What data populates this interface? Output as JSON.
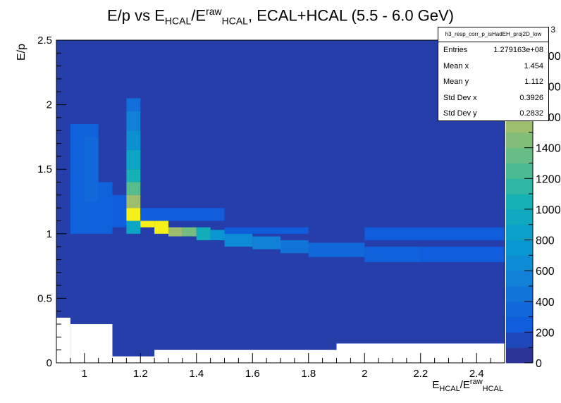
{
  "title": {
    "pre": "E/p vs E",
    "sub1": "HCAL",
    "mid": "/E",
    "sup2": "raw",
    "sub2": "HCAL",
    "post": ", ECAL+HCAL (5.5 - 6.0 GeV)"
  },
  "xlabel": {
    "pre": "E",
    "sub1": "HCAL",
    "mid": "/E",
    "sup2": "raw",
    "sub2": "HCAL"
  },
  "ylabel": "E/p",
  "stats": {
    "name": "h3_resp_corr_p_isHadEH_proj2D_low",
    "rows": [
      {
        "label": "Entries",
        "value": "1.279163e+08"
      },
      {
        "label": "Mean x",
        "value": "1.454"
      },
      {
        "label": "Mean y",
        "value": "1.112"
      },
      {
        "label": "Std Dev x",
        "value": "0.3926"
      },
      {
        "label": "Std Dev y",
        "value": "0.2832"
      }
    ]
  },
  "chart_data": {
    "type": "heatmap",
    "xlim": [
      0.9,
      2.5
    ],
    "ylim": [
      0,
      2.5
    ],
    "x_ticks": [
      "1",
      "1.2",
      "1.4",
      "1.6",
      "1.8",
      "2",
      "2.2",
      "2.4"
    ],
    "x_tick_values": [
      1.0,
      1.2,
      1.4,
      1.6,
      1.8,
      2.0,
      2.2,
      2.4
    ],
    "y_ticks": [
      "0",
      "0.5",
      "1",
      "1.5",
      "2",
      "2.5"
    ],
    "y_tick_values": [
      0,
      0.5,
      1.0,
      1.5,
      2.0,
      2.5
    ],
    "z_ticks": [
      "0",
      "200",
      "400",
      "600",
      "800",
      "1000",
      "1200",
      "1400",
      "1600"
    ],
    "z_tick_values": [
      0,
      200,
      400,
      600,
      800,
      1000,
      1200,
      1400,
      1600
    ],
    "z_multiplier_label": "3",
    "zlim": [
      0,
      2100
    ],
    "background_value": 100,
    "empty_regions": [
      {
        "x": [
          0.9,
          0.95
        ],
        "y": [
          0,
          0.35
        ]
      },
      {
        "x": [
          0.95,
          1.1
        ],
        "y": [
          0,
          0.3
        ]
      },
      {
        "x": [
          1.1,
          1.25
        ],
        "y": [
          0,
          0.05
        ]
      },
      {
        "x": [
          1.25,
          1.9
        ],
        "y": [
          0,
          0.1
        ]
      },
      {
        "x": [
          1.9,
          2.5
        ],
        "y": [
          0,
          0.15
        ]
      }
    ],
    "cells": [
      {
        "x": [
          0.95,
          1.05
        ],
        "y": [
          1.0,
          1.85
        ],
        "z": 300
      },
      {
        "x": [
          1.0,
          1.05
        ],
        "y": [
          1.25,
          1.75
        ],
        "z": 350
      },
      {
        "x": [
          1.05,
          1.1
        ],
        "y": [
          1.0,
          1.4
        ],
        "z": 300
      },
      {
        "x": [
          1.1,
          1.15
        ],
        "y": [
          1.05,
          1.3
        ],
        "z": 250
      },
      {
        "x": [
          1.15,
          1.2
        ],
        "y": [
          1.95,
          2.05
        ],
        "z": 400
      },
      {
        "x": [
          1.15,
          1.2
        ],
        "y": [
          1.8,
          1.95
        ],
        "z": 550
      },
      {
        "x": [
          1.15,
          1.2
        ],
        "y": [
          1.65,
          1.8
        ],
        "z": 700
      },
      {
        "x": [
          1.15,
          1.2
        ],
        "y": [
          1.5,
          1.65
        ],
        "z": 900
      },
      {
        "x": [
          1.15,
          1.2
        ],
        "y": [
          1.4,
          1.5
        ],
        "z": 1050
      },
      {
        "x": [
          1.15,
          1.2
        ],
        "y": [
          1.3,
          1.4
        ],
        "z": 1300
      },
      {
        "x": [
          1.15,
          1.2
        ],
        "y": [
          1.2,
          1.3
        ],
        "z": 1550
      },
      {
        "x": [
          1.15,
          1.2
        ],
        "y": [
          1.1,
          1.2
        ],
        "z": 2050
      },
      {
        "x": [
          1.15,
          1.2
        ],
        "y": [
          1.0,
          1.1
        ],
        "z": 900
      },
      {
        "x": [
          1.2,
          1.25
        ],
        "y": [
          1.05,
          1.15
        ],
        "z": 2050
      },
      {
        "x": [
          1.25,
          1.3
        ],
        "y": [
          1.0,
          1.1
        ],
        "z": 2050
      },
      {
        "x": [
          1.3,
          1.35
        ],
        "y": [
          0.98,
          1.05
        ],
        "z": 1550
      },
      {
        "x": [
          1.35,
          1.4
        ],
        "y": [
          0.98,
          1.05
        ],
        "z": 1400
      },
      {
        "x": [
          1.4,
          1.45
        ],
        "y": [
          0.95,
          1.05
        ],
        "z": 1000
      },
      {
        "x": [
          1.45,
          1.5
        ],
        "y": [
          0.95,
          1.03
        ],
        "z": 750
      },
      {
        "x": [
          1.5,
          1.6
        ],
        "y": [
          0.9,
          1.0
        ],
        "z": 650
      },
      {
        "x": [
          1.6,
          1.7
        ],
        "y": [
          0.88,
          0.98
        ],
        "z": 550
      },
      {
        "x": [
          1.7,
          1.8
        ],
        "y": [
          0.85,
          0.95
        ],
        "z": 450
      },
      {
        "x": [
          1.8,
          2.0
        ],
        "y": [
          0.82,
          0.93
        ],
        "z": 350
      },
      {
        "x": [
          2.0,
          2.2
        ],
        "y": [
          0.78,
          0.9
        ],
        "z": 300
      },
      {
        "x": [
          2.2,
          2.5
        ],
        "y": [
          0.78,
          0.9
        ],
        "z": 250
      },
      {
        "x": [
          2.0,
          2.5
        ],
        "y": [
          0.95,
          1.05
        ],
        "z": 250
      },
      {
        "x": [
          1.2,
          1.5
        ],
        "y": [
          1.1,
          1.2
        ],
        "z": 250
      },
      {
        "x": [
          1.5,
          1.8
        ],
        "y": [
          1.0,
          1.05
        ],
        "z": 250
      }
    ]
  }
}
